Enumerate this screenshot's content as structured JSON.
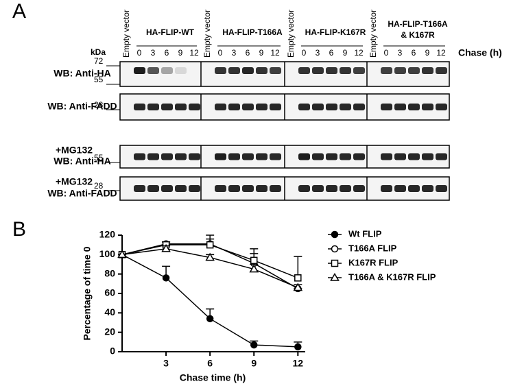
{
  "panel_a": {
    "label": "A",
    "kda": "kDa",
    "chase": "Chase (h)",
    "groups": [
      {
        "empty": "Empty vector",
        "title": [
          "HA-FLIP-WT"
        ],
        "lanes": [
          "0",
          "3",
          "6",
          "9",
          "12"
        ]
      },
      {
        "empty": "Empty vector",
        "title": [
          "HA-FLIP-T166A"
        ],
        "lanes": [
          "0",
          "3",
          "6",
          "9",
          "12"
        ]
      },
      {
        "empty": "Empty vector",
        "title": [
          "HA-FLIP-K167R"
        ],
        "lanes": [
          "0",
          "3",
          "6",
          "9",
          "12"
        ]
      },
      {
        "empty": "Empty vector",
        "title": [
          "HA-FLIP-T166A",
          "& K167R"
        ],
        "lanes": [
          "0",
          "3",
          "6",
          "9",
          "12"
        ]
      }
    ],
    "rows": [
      {
        "lines": [
          "WB: Anti-HA"
        ],
        "mw": [
          "72",
          "55"
        ]
      },
      {
        "lines": [
          "WB: Anti-FADD"
        ],
        "mw": [
          "28"
        ]
      },
      {
        "lines": [
          "+MG132",
          "WB: Anti-HA"
        ],
        "mw": [
          "55"
        ]
      },
      {
        "lines": [
          "+MG132",
          "WB: Anti-FADD"
        ],
        "mw": [
          "28"
        ]
      }
    ]
  },
  "chart_data": {
    "type": "line",
    "label": "B",
    "ylabel": "Percentage of time 0",
    "xlabel": "Chase time (h)",
    "x": [
      0,
      3,
      6,
      9,
      12
    ],
    "xlim": [
      0,
      12.5
    ],
    "xticks": [
      3,
      6,
      9,
      12
    ],
    "ylim": [
      0,
      120
    ],
    "yticks": [
      0,
      20,
      40,
      60,
      80,
      100,
      120
    ],
    "series": [
      {
        "name": "Wt FLIP",
        "color": "#000000",
        "marker": "circle-filled",
        "values": [
          100,
          76,
          34,
          7,
          5
        ],
        "errors": [
          0,
          12,
          10,
          4,
          5
        ]
      },
      {
        "name": "T166A FLIP",
        "color": "#000000",
        "marker": "circle-open",
        "values": [
          100,
          111,
          111,
          91,
          65
        ],
        "errors": [
          0,
          2,
          5,
          10,
          0
        ]
      },
      {
        "name": "K167R FLIP",
        "color": "#000000",
        "marker": "square-open",
        "values": [
          100,
          110,
          110,
          94,
          76
        ],
        "errors": [
          0,
          3,
          10,
          12,
          22
        ]
      },
      {
        "name": "T166A & K167R FLIP",
        "color": "#000000",
        "marker": "triangle-open",
        "values": [
          100,
          106,
          97,
          85,
          66
        ],
        "errors": [
          0,
          3,
          3,
          5,
          3
        ]
      }
    ]
  }
}
